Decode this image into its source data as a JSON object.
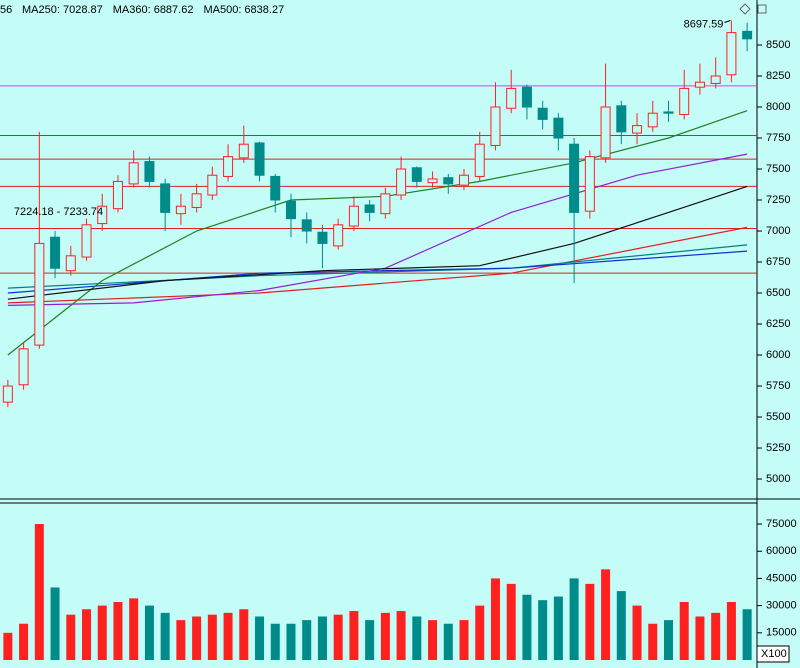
{
  "chart_data": [
    {
      "type": "candlestick",
      "header": "56",
      "up_color": "#ff2020",
      "down_color": "#008b8b",
      "open": [
        5620,
        5760,
        6080,
        6950,
        6680,
        6790,
        7060,
        7180,
        7380,
        7560,
        7380,
        7140,
        7190,
        7290,
        7440,
        7590,
        7710,
        7440,
        7240,
        7090,
        6990,
        6880,
        7040,
        7210,
        7140,
        7290,
        7510,
        7390,
        7430,
        7370,
        7440,
        7690,
        7990,
        8160,
        7990,
        7910,
        7700,
        7160,
        7590,
        8010,
        7790,
        7840,
        7960,
        7940,
        8160,
        8190,
        8260,
        8610
      ],
      "close": [
        5750,
        6050,
        6900,
        6700,
        6800,
        7050,
        7200,
        7400,
        7550,
        7400,
        7150,
        7200,
        7300,
        7450,
        7600,
        7700,
        7450,
        7250,
        7100,
        7000,
        6900,
        7050,
        7200,
        7150,
        7300,
        7500,
        7400,
        7420,
        7380,
        7450,
        7700,
        8000,
        8150,
        8000,
        7900,
        7750,
        7150,
        7600,
        8000,
        7800,
        7850,
        7950,
        7950,
        8150,
        8200,
        8250,
        8600,
        8550
      ],
      "high": [
        5800,
        6100,
        7800,
        7000,
        6880,
        7100,
        7300,
        7450,
        7650,
        7600,
        7420,
        7300,
        7380,
        7520,
        7700,
        7850,
        7720,
        7460,
        7300,
        7150,
        7050,
        7100,
        7280,
        7250,
        7350,
        7600,
        7520,
        7480,
        7460,
        7500,
        7800,
        8200,
        8300,
        8180,
        8050,
        7950,
        7750,
        7650,
        8350,
        8050,
        7950,
        8050,
        8050,
        8300,
        8350,
        8400,
        8697.59,
        8680
      ],
      "low": [
        5580,
        5720,
        6050,
        6620,
        6640,
        6760,
        7000,
        7150,
        7350,
        7350,
        7000,
        7050,
        7150,
        7250,
        7400,
        7550,
        7400,
        7150,
        6950,
        6900,
        6700,
        6850,
        7000,
        7080,
        7100,
        7250,
        7350,
        7350,
        7300,
        7330,
        7400,
        7650,
        7950,
        7900,
        7820,
        7650,
        6580,
        7100,
        7550,
        7700,
        7700,
        7800,
        7880,
        7900,
        8100,
        8150,
        8200,
        8450
      ],
      "lines": [
        {
          "name": "MA250: 7028.87",
          "color": "#e02020",
          "x": [
            0,
            16,
            32,
            47
          ],
          "values": [
            6420,
            6500,
            6660,
            7029
          ]
        },
        {
          "name": "MA360: 6887.62",
          "color": "#008080",
          "x": [
            0,
            16,
            32,
            47
          ],
          "values": [
            6540,
            6640,
            6700,
            6888
          ]
        },
        {
          "name": "MA500: 6838.27",
          "color": "#1030d0",
          "x": [
            0,
            16,
            32,
            47
          ],
          "values": [
            6500,
            6660,
            6700,
            6838
          ]
        },
        {
          "color": "#9020d0",
          "x": [
            0,
            8,
            16,
            24,
            32,
            40,
            47
          ],
          "values": [
            6400,
            6420,
            6520,
            6700,
            7150,
            7450,
            7620
          ]
        },
        {
          "color": "#208020",
          "x": [
            0,
            6,
            12,
            18,
            24,
            30,
            36,
            42,
            47
          ],
          "values": [
            6000,
            6600,
            7000,
            7250,
            7280,
            7400,
            7550,
            7750,
            7970
          ]
        },
        {
          "color": "#101010",
          "x": [
            0,
            10,
            20,
            30,
            36,
            42,
            47
          ],
          "values": [
            6450,
            6600,
            6680,
            6720,
            6900,
            7150,
            7360
          ]
        }
      ],
      "hlines": [
        {
          "value": 8170,
          "color": "#e040e0"
        },
        {
          "value": 7770,
          "color": "#e02020"
        },
        {
          "value": 7580,
          "color": "#e02020"
        },
        {
          "value": 7360,
          "color": "#e02020"
        },
        {
          "value": 7020,
          "color": "#e02020"
        },
        {
          "value": 6660,
          "color": "#e02020"
        }
      ],
      "annotations": [
        "8697.59",
        "7224.18 - 7233.74"
      ],
      "ylim": [
        4855,
        8863
      ],
      "yticks": [
        5000,
        5250,
        5500,
        5750,
        6000,
        6250,
        6500,
        6750,
        7000,
        7250,
        7500,
        7750,
        8000,
        8250,
        8500
      ]
    },
    {
      "type": "bar",
      "values": [
        15000,
        20000,
        75000,
        40000,
        25000,
        28000,
        30000,
        32000,
        34000,
        30000,
        26000,
        22000,
        24000,
        25000,
        26000,
        28000,
        24000,
        20000,
        20000,
        22000,
        24000,
        25000,
        27000,
        22000,
        26000,
        27000,
        24000,
        22000,
        20000,
        22000,
        30000,
        45000,
        42000,
        36000,
        33000,
        35000,
        45000,
        42000,
        50000,
        38000,
        30000,
        20000,
        22000,
        32000,
        24000,
        26000,
        32000,
        28000
      ],
      "unit_label": "X100",
      "ylim": [
        0,
        85500
      ],
      "yticks": [
        15000,
        30000,
        45000,
        60000,
        75000
      ]
    }
  ]
}
